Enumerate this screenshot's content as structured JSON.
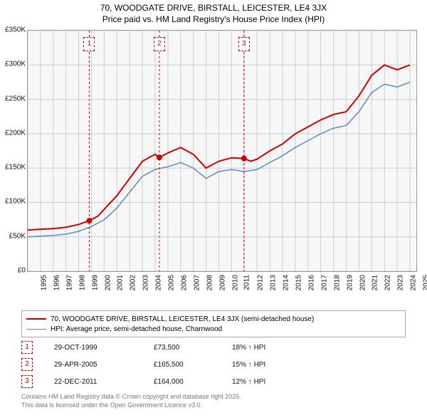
{
  "title_line1": "70, WOODGATE DRIVE, BIRSTALL, LEICESTER, LE4 3JX",
  "title_line2": "Price paid vs. HM Land Registry's House Price Index (HPI)",
  "chart": {
    "type": "line",
    "background_color": "#f7f7f7",
    "grid_color": "#cccccc",
    "axis_color": "#999999",
    "x_years": [
      1995,
      1996,
      1997,
      1998,
      1999,
      2000,
      2001,
      2002,
      2003,
      2004,
      2005,
      2006,
      2007,
      2008,
      2009,
      2010,
      2011,
      2012,
      2013,
      2014,
      2015,
      2016,
      2017,
      2018,
      2019,
      2020,
      2021,
      2022,
      2023,
      2024,
      2025
    ],
    "y_ticks": [
      0,
      50000,
      100000,
      150000,
      200000,
      250000,
      300000,
      350000
    ],
    "y_tick_labels": [
      "£0",
      "£50K",
      "£100K",
      "£150K",
      "£200K",
      "£250K",
      "£300K",
      "£350K"
    ],
    "ylim": [
      0,
      350000
    ],
    "xlim": [
      1995,
      2025.5
    ],
    "series": [
      {
        "name": "property",
        "label": "70, WOODGATE DRIVE, BIRSTALL, LEICESTER, LE4 3JX (semi-detached house)",
        "color": "#cc0000",
        "line_width": 2,
        "data": [
          [
            1995,
            60000
          ],
          [
            1996,
            61000
          ],
          [
            1997,
            62000
          ],
          [
            1998,
            64000
          ],
          [
            1999,
            68000
          ],
          [
            1999.83,
            73500
          ],
          [
            2000.5,
            80000
          ],
          [
            2001,
            90000
          ],
          [
            2002,
            110000
          ],
          [
            2003,
            135000
          ],
          [
            2004,
            160000
          ],
          [
            2005,
            170000
          ],
          [
            2005.33,
            165500
          ],
          [
            2006,
            172000
          ],
          [
            2007,
            180000
          ],
          [
            2008,
            170000
          ],
          [
            2009,
            150000
          ],
          [
            2010,
            160000
          ],
          [
            2011,
            165000
          ],
          [
            2011.97,
            164000
          ],
          [
            2012.5,
            160000
          ],
          [
            2013,
            163000
          ],
          [
            2014,
            175000
          ],
          [
            2015,
            185000
          ],
          [
            2016,
            200000
          ],
          [
            2017,
            210000
          ],
          [
            2018,
            220000
          ],
          [
            2019,
            228000
          ],
          [
            2020,
            232000
          ],
          [
            2021,
            255000
          ],
          [
            2022,
            285000
          ],
          [
            2023,
            300000
          ],
          [
            2024,
            293000
          ],
          [
            2025,
            300000
          ]
        ]
      },
      {
        "name": "hpi",
        "label": "HPI: Average price, semi-detached house, Charnwood",
        "color": "#5b8bbf",
        "line_width": 1.5,
        "data": [
          [
            1995,
            50000
          ],
          [
            1996,
            51000
          ],
          [
            1997,
            52000
          ],
          [
            1998,
            54000
          ],
          [
            1999,
            58000
          ],
          [
            2000,
            65000
          ],
          [
            2001,
            75000
          ],
          [
            2002,
            92000
          ],
          [
            2003,
            115000
          ],
          [
            2004,
            138000
          ],
          [
            2005,
            148000
          ],
          [
            2006,
            152000
          ],
          [
            2007,
            158000
          ],
          [
            2008,
            150000
          ],
          [
            2009,
            135000
          ],
          [
            2010,
            145000
          ],
          [
            2011,
            148000
          ],
          [
            2012,
            145000
          ],
          [
            2013,
            148000
          ],
          [
            2014,
            158000
          ],
          [
            2015,
            168000
          ],
          [
            2016,
            180000
          ],
          [
            2017,
            190000
          ],
          [
            2018,
            200000
          ],
          [
            2019,
            208000
          ],
          [
            2020,
            212000
          ],
          [
            2021,
            232000
          ],
          [
            2022,
            260000
          ],
          [
            2023,
            272000
          ],
          [
            2024,
            268000
          ],
          [
            2025,
            275000
          ]
        ]
      }
    ],
    "sale_markers": [
      {
        "idx": "1",
        "x": 1999.83,
        "y": 73500
      },
      {
        "idx": "2",
        "x": 2005.33,
        "y": 165500
      },
      {
        "idx": "3",
        "x": 2011.97,
        "y": 164000
      }
    ],
    "title_fontsize": 12,
    "axis_label_fontsize": 10
  },
  "legend": {
    "series_labels": [
      "70, WOODGATE DRIVE, BIRSTALL, LEICESTER, LE4 3JX (semi-detached house)",
      "HPI: Average price, semi-detached house, Charnwood"
    ]
  },
  "sales_table": [
    {
      "idx": "1",
      "date": "29-OCT-1999",
      "price": "£73,500",
      "diff": "18% ↑ HPI"
    },
    {
      "idx": "2",
      "date": "29-APR-2005",
      "price": "£165,500",
      "diff": "15% ↑ HPI"
    },
    {
      "idx": "3",
      "date": "22-DEC-2011",
      "price": "£164,000",
      "diff": "12% ↑ HPI"
    }
  ],
  "attribution_line1": "Contains HM Land Registry data © Crown copyright and database right 2025.",
  "attribution_line2": "This data is licensed under the Open Government Licence v3.0."
}
